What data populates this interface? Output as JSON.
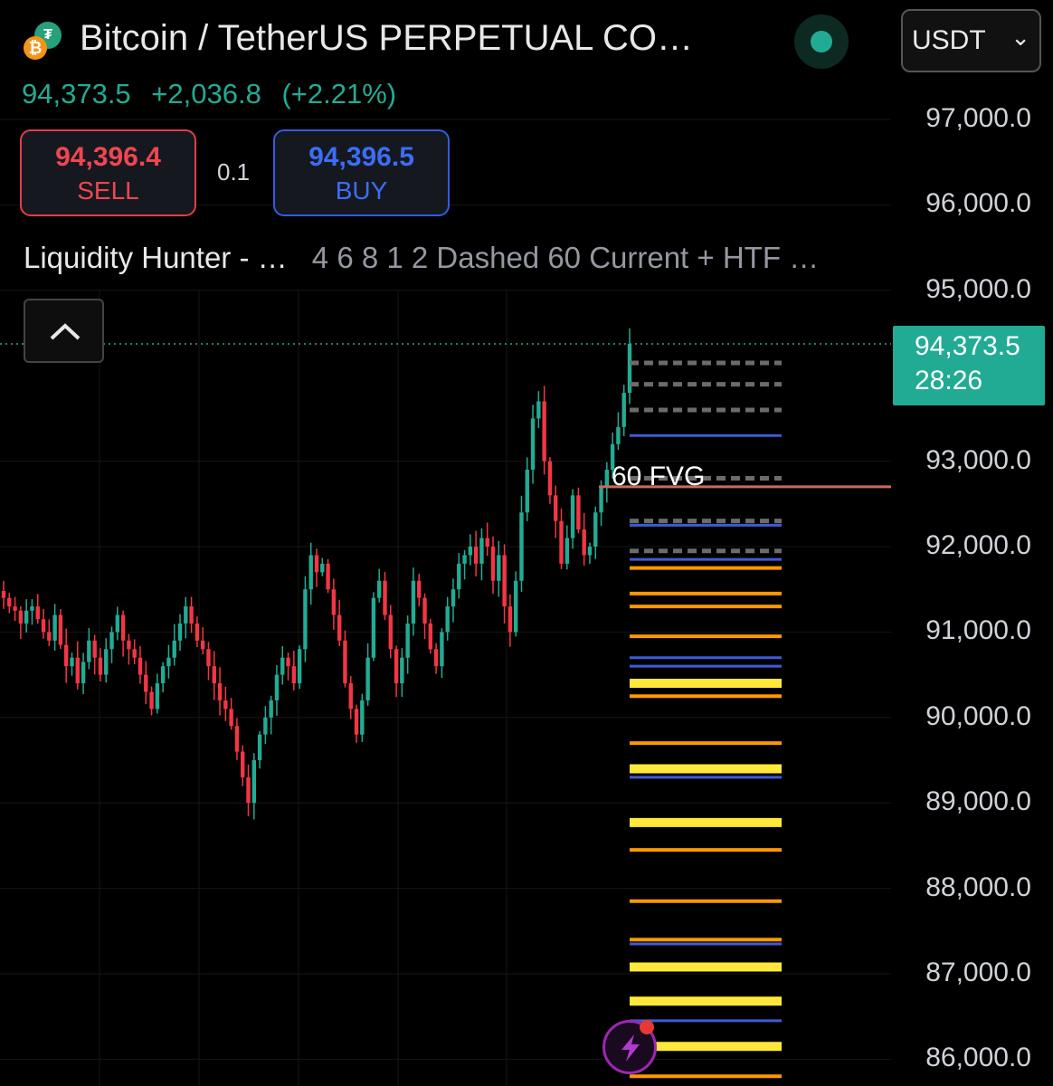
{
  "header": {
    "symbol_title": "Bitcoin / TetherUS PERPETUAL CO…",
    "base_icon": "bitcoin-icon",
    "quote_icon": "tether-icon",
    "last_price": "94,373.5",
    "change_abs": "+2,036.8",
    "change_pct": "(+2.21%)",
    "currency": "USDT"
  },
  "trade": {
    "sell_price": "94,396.4",
    "sell_label": "SELL",
    "spread": "0.1",
    "buy_price": "94,396.5",
    "buy_label": "BUY"
  },
  "indicator": {
    "name": "Liquidity Hunter - …",
    "params": "4 6 8 1 2 Dashed 60 Current + HTF …"
  },
  "price_badge": {
    "price": "94,373.5",
    "countdown": "28:26"
  },
  "annotation": {
    "fvg_label": "60 FVG"
  },
  "colors": {
    "up": "#22ab94",
    "down": "#f23645",
    "sell": "#ef4651",
    "buy": "#3b6ef5",
    "level_yellow": "#ffe83a",
    "level_orange": "#ff9800",
    "level_blue": "#3e5bd6",
    "level_gray": "#6b6b6b",
    "fvg_line": "#c96b5a"
  },
  "chart_data": {
    "type": "candlestick",
    "y_axis_ticks": [
      "97,000.0",
      "96,000.0",
      "95,000.0",
      "93,000.0",
      "92,000.0",
      "91,000.0",
      "90,000.0",
      "89,000.0",
      "88,000.0",
      "87,000.0",
      "86,000.0"
    ],
    "ylim": [
      85700,
      97700
    ],
    "last_price": 94373.5,
    "fvg_level": 92700,
    "closes": [
      91400,
      91300,
      91250,
      91100,
      91250,
      91300,
      91150,
      91000,
      90900,
      91200,
      90850,
      90600,
      90700,
      90400,
      90650,
      90900,
      90700,
      90500,
      90800,
      91000,
      91200,
      90900,
      90800,
      90700,
      90500,
      90300,
      90100,
      90400,
      90600,
      90700,
      90900,
      91100,
      91300,
      91100,
      90900,
      90800,
      90600,
      90400,
      90200,
      90100,
      89900,
      89600,
      89300,
      89000,
      89500,
      89800,
      90000,
      90200,
      90500,
      90700,
      90600,
      90400,
      90800,
      91500,
      91900,
      91700,
      91800,
      91500,
      91200,
      90900,
      90400,
      90100,
      89800,
      90200,
      90700,
      91400,
      91600,
      91200,
      90800,
      90400,
      90700,
      91100,
      91600,
      91400,
      91100,
      90800,
      90600,
      91000,
      91300,
      91500,
      91800,
      91900,
      92000,
      91800,
      92100,
      92000,
      91600,
      91900,
      91300,
      91000,
      91600,
      92400,
      92900,
      93500,
      93700,
      93000,
      92600,
      92300,
      91800,
      92100,
      92600,
      92200,
      91900,
      92000,
      92400,
      92700,
      92900,
      93200,
      93400,
      93800,
      94373.5
    ],
    "levels": [
      {
        "price": 94150,
        "color": "gray"
      },
      {
        "price": 93900,
        "color": "gray"
      },
      {
        "price": 93600,
        "color": "gray"
      },
      {
        "price": 93300,
        "color": "blue"
      },
      {
        "price": 92800,
        "color": "gray"
      },
      {
        "price": 92300,
        "color": "gray"
      },
      {
        "price": 92250,
        "color": "blue"
      },
      {
        "price": 91950,
        "color": "gray"
      },
      {
        "price": 91850,
        "color": "blue"
      },
      {
        "price": 91750,
        "color": "orange"
      },
      {
        "price": 91450,
        "color": "orange"
      },
      {
        "price": 91300,
        "color": "orange"
      },
      {
        "price": 90950,
        "color": "orange"
      },
      {
        "price": 90700,
        "color": "blue"
      },
      {
        "price": 90600,
        "color": "blue"
      },
      {
        "price": 90400,
        "color": "yellow"
      },
      {
        "price": 90250,
        "color": "orange"
      },
      {
        "price": 89700,
        "color": "orange"
      },
      {
        "price": 89400,
        "color": "yellow"
      },
      {
        "price": 89300,
        "color": "blue"
      },
      {
        "price": 88770,
        "color": "yellow"
      },
      {
        "price": 88450,
        "color": "orange"
      },
      {
        "price": 87850,
        "color": "orange"
      },
      {
        "price": 87400,
        "color": "orange"
      },
      {
        "price": 87350,
        "color": "blue"
      },
      {
        "price": 87080,
        "color": "yellow"
      },
      {
        "price": 86680,
        "color": "yellow"
      },
      {
        "price": 86450,
        "color": "blue"
      },
      {
        "price": 86150,
        "color": "yellow"
      },
      {
        "price": 85800,
        "color": "orange"
      }
    ]
  }
}
